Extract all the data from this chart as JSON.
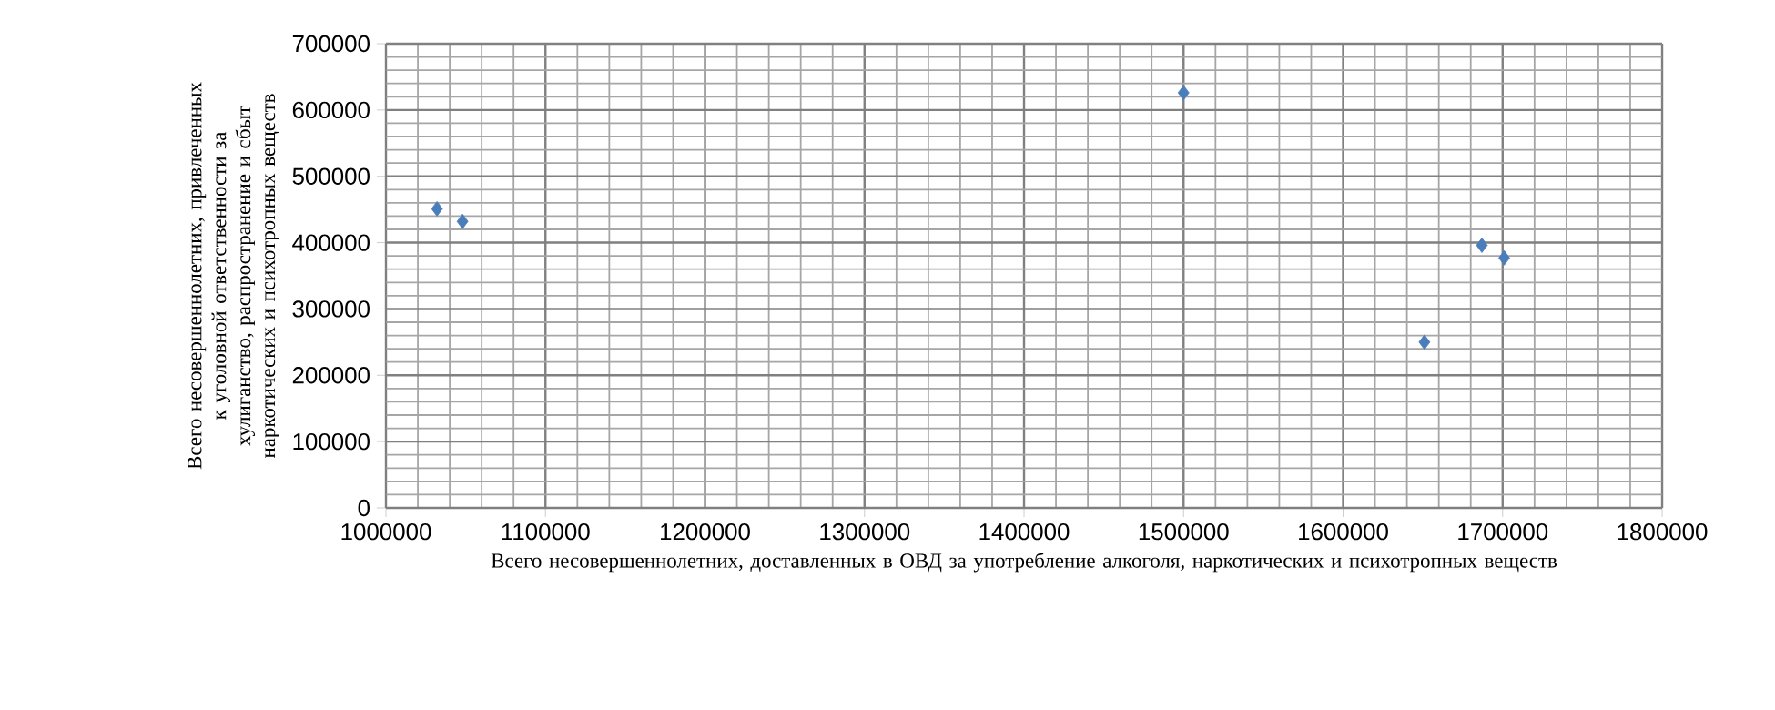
{
  "chart_data": {
    "type": "scatter",
    "xlabel": "Всего несовершеннолетних, доставленных в ОВД за употребление алкоголя, наркотических и психотропных веществ",
    "ylabel": "Всего несовершеннолетних, привлеченных к уголовной ответственности за хулиганство, распространение и сбыт наркотических и психотропных веществ",
    "x": [
      1032000,
      1048000,
      1500000,
      1651000,
      1687000,
      1701000
    ],
    "values": [
      451000,
      432000,
      626000,
      250000,
      396000,
      377000
    ],
    "color": "#4a7ebb",
    "marker": "diamond",
    "grid": true,
    "xlim": [
      1000000,
      1800000
    ],
    "xticks": [
      1000000,
      1100000,
      1200000,
      1300000,
      1400000,
      1500000,
      1600000,
      1700000,
      1800000
    ],
    "ylim": [
      0,
      700000
    ],
    "yticks": [
      0,
      100000,
      200000,
      300000,
      400000,
      500000,
      600000,
      700000
    ]
  }
}
